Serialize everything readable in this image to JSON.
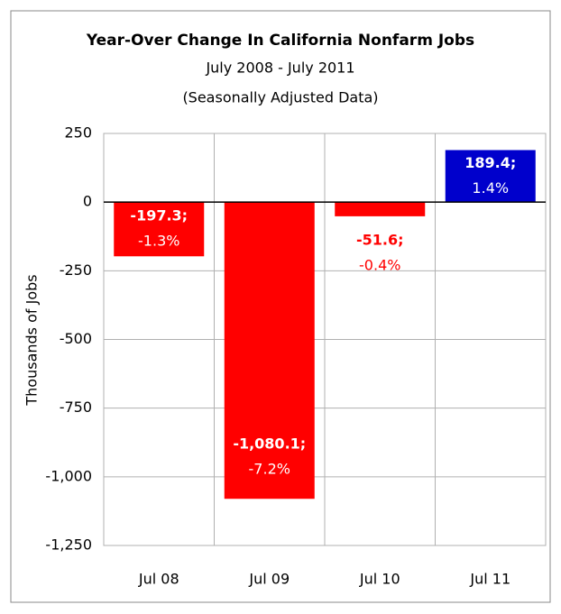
{
  "chart_data": {
    "type": "bar",
    "title": "Year-Over Change In California Nonfarm Jobs",
    "subtitle": "July 2008 - July 2011",
    "note": "(Seasonally Adjusted Data)",
    "ylabel": "Thousands of Jobs",
    "categories": [
      "Jul 08",
      "Jul 09",
      "Jul 10",
      "Jul 11"
    ],
    "values": [
      -197.3,
      -1080.1,
      -51.6,
      189.4
    ],
    "value_labels": [
      "-197.3;",
      "-1,080.1;",
      "-51.6;",
      "189.4;"
    ],
    "percent_values": [
      -1.3,
      -7.2,
      -0.4,
      1.4
    ],
    "percent_labels": [
      "-1.3%",
      "-7.2%",
      "-0.4%",
      "1.4%"
    ],
    "colors": [
      "#ff0000",
      "#ff0000",
      "#ff0000",
      "#0000cc"
    ],
    "ylim": [
      -1250,
      250
    ],
    "yticks": [
      250,
      0,
      -250,
      -500,
      -750,
      {
        "value": -1000,
        "label": "-1,000"
      },
      {
        "value": -1250,
        "label": "-1,250"
      }
    ],
    "grid": true
  }
}
